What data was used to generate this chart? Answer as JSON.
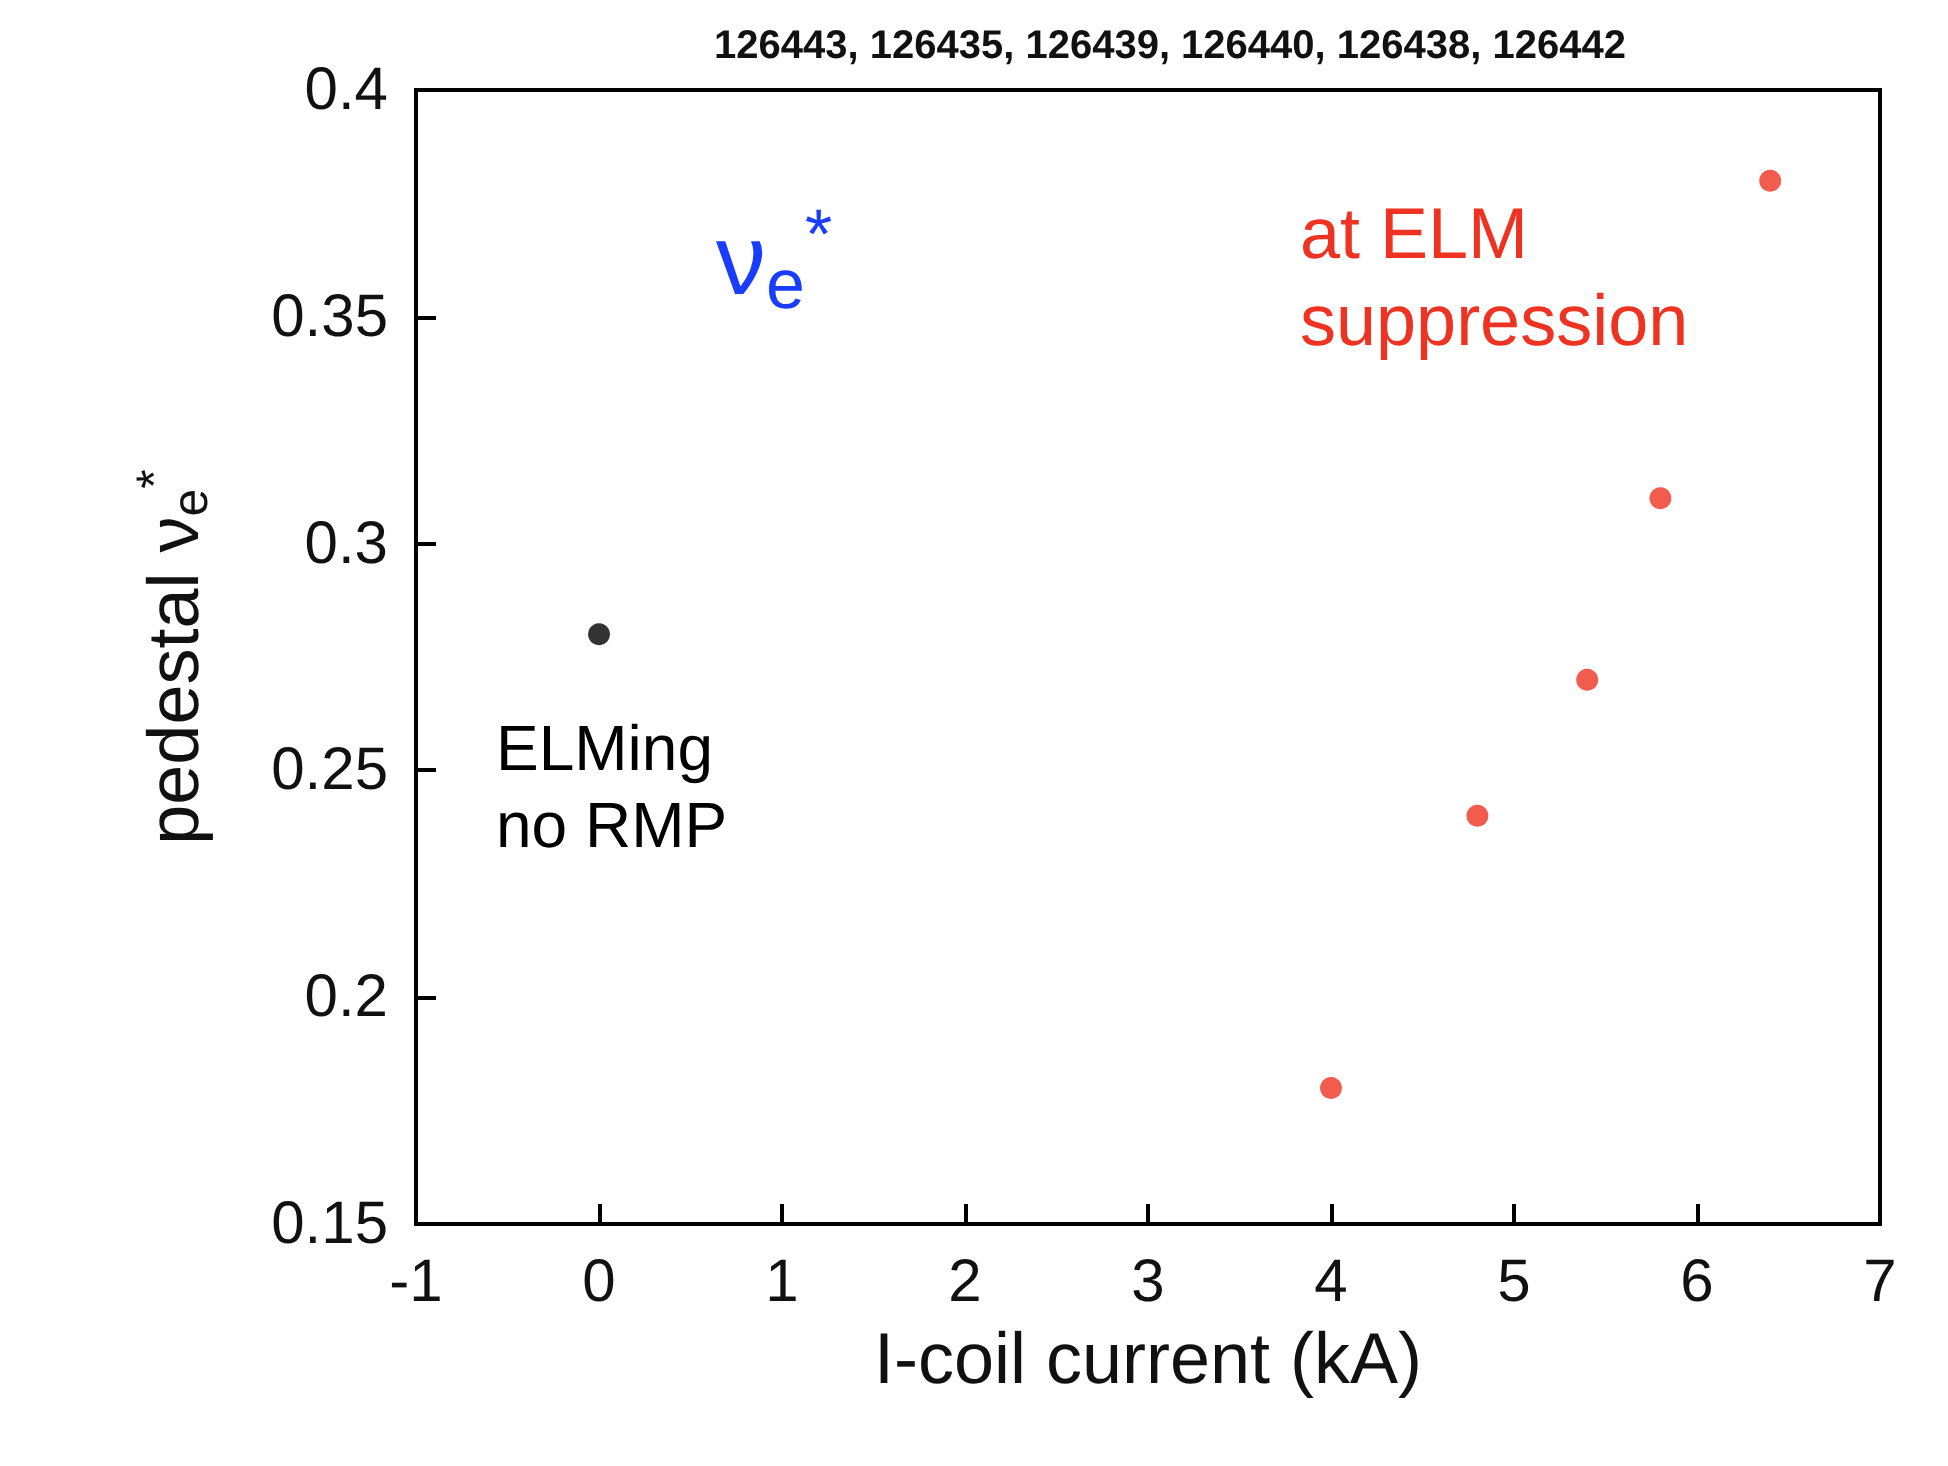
{
  "chart_data": {
    "type": "scatter",
    "title": "126443, 126435, 126439, 126440, 126438, 126442",
    "xlabel": "I-coil current (kA)",
    "ylabel": "pedestal ν$_{e}$$^{*}$",
    "annotations": [
      "ν$_{e}$$^{*}$",
      "at ELM suppression",
      "ELMing no RMP"
    ],
    "series": [
      {
        "color": "#000000",
        "x": [
          0
        ],
        "values": [
          0.28
        ]
      },
      {
        "color": "#ee3322",
        "x": [
          4,
          4.8,
          5.4,
          5.8,
          6.4
        ],
        "values": [
          0.18,
          0.24,
          0.27,
          0.31,
          0.38
        ]
      }
    ],
    "xlim": [
      -1,
      7
    ],
    "xticks": [
      -1,
      0,
      1,
      2,
      3,
      4,
      5,
      6,
      7
    ],
    "ylim": [
      0.15,
      0.4
    ],
    "yticks": [
      0.15,
      0.2,
      0.25,
      0.3,
      0.35,
      0.4
    ],
    "grid": false,
    "marker": "circle"
  }
}
